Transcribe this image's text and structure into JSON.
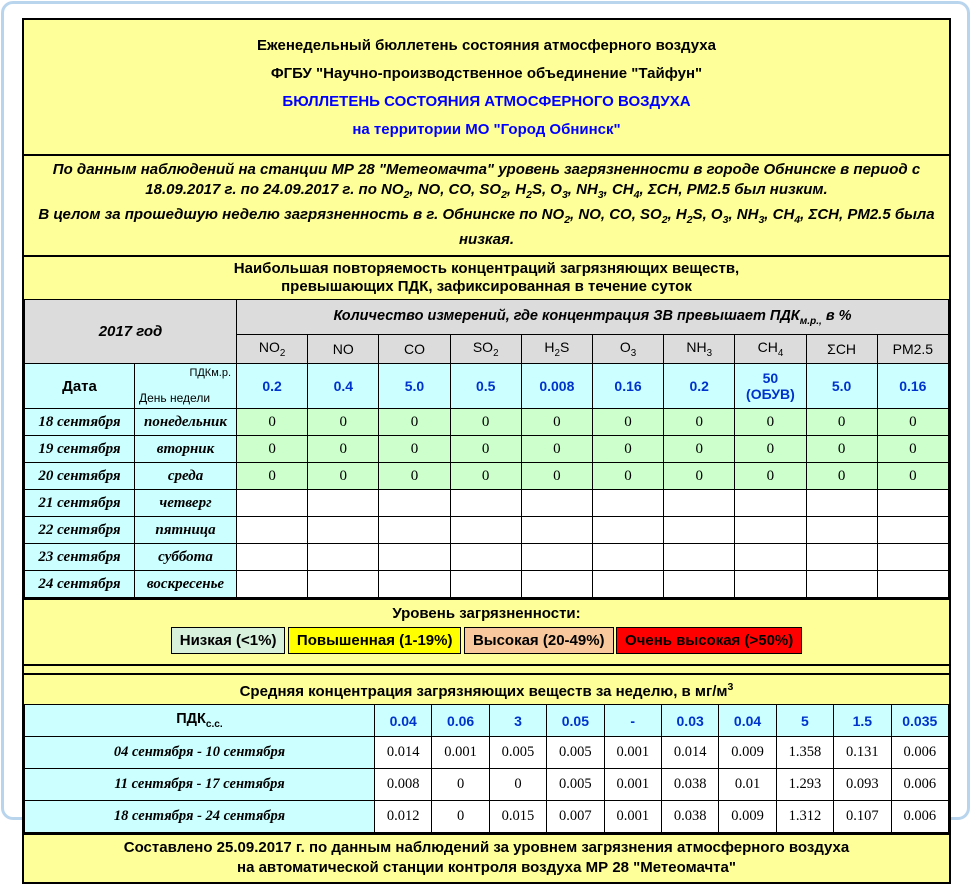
{
  "palette": {
    "paper_bg": "#ffff99",
    "header_gray": "#dcdcdc",
    "label_cyan": "#ccffff",
    "zero_green": "#ccffcc",
    "title_blue": "#0000ff",
    "value_blue": "#0033cc",
    "frame_blue": "#b9d5ee"
  },
  "header": {
    "line1": "Еженедельный бюллетень состояния атмосферного воздуха",
    "line2": "ФГБУ \"Научно-производственное объединение \"Тайфун\"",
    "line3": "БЮЛЛЕТЕНЬ СОСТОЯНИЯ АТМОСФЕРНОГО ВОЗДУХА",
    "line4": "на территории МО \"Город Обнинск\""
  },
  "summary": {
    "sentence1": [
      {
        "t": "По данным наблюдений на станции МР 28 \"Метеомачта\" уровень загрязненности в городе Обнинске в период с 18.09.2017 г. по 24.09.2017 г. по NO"
      },
      {
        "s": "2"
      },
      {
        "t": ", NO, CO, SO"
      },
      {
        "s": "2"
      },
      {
        "t": ", H"
      },
      {
        "s": "2"
      },
      {
        "t": "S, O"
      },
      {
        "s": "3"
      },
      {
        "t": ", NH"
      },
      {
        "s": "3"
      },
      {
        "t": ", CH"
      },
      {
        "s": "4"
      },
      {
        "t": ", ΣCH, PM2.5 был низким."
      }
    ],
    "sentence2": [
      {
        "t": "В целом за прошедшую неделю загрязненность в г. Обнинске по NO"
      },
      {
        "s": "2"
      },
      {
        "t": ", NO, CO, SO"
      },
      {
        "s": "2"
      },
      {
        "t": ", H"
      },
      {
        "s": "2"
      },
      {
        "t": "S, O"
      },
      {
        "s": "3"
      },
      {
        "t": ", NH"
      },
      {
        "s": "3"
      },
      {
        "t": ", CH"
      },
      {
        "s": "4"
      },
      {
        "t": ", ΣCH, PM2.5 была низкая."
      }
    ]
  },
  "table1": {
    "band_line1": "Наибольшая повторяемость концентраций загрязняющих веществ,",
    "band_line2": "превышающих ПДК, зафиксированная в течение суток",
    "year_label": "2017 год",
    "measure_header": [
      {
        "t": "Количество измерений, где концентрация ЗВ превышает ПДК"
      },
      {
        "s": "м.р.,"
      },
      {
        "t": " в %"
      }
    ],
    "columns": [
      {
        "segs": [
          {
            "t": "NO"
          },
          {
            "s": "2"
          }
        ]
      },
      {
        "segs": [
          {
            "t": "NO"
          }
        ]
      },
      {
        "segs": [
          {
            "t": "CO"
          }
        ]
      },
      {
        "segs": [
          {
            "t": "SO"
          },
          {
            "s": "2"
          }
        ]
      },
      {
        "segs": [
          {
            "t": "H"
          },
          {
            "s": "2"
          },
          {
            "t": "S"
          }
        ]
      },
      {
        "segs": [
          {
            "t": "O"
          },
          {
            "s": "3"
          }
        ]
      },
      {
        "segs": [
          {
            "t": "NH"
          },
          {
            "s": "3"
          }
        ]
      },
      {
        "segs": [
          {
            "t": "CH"
          },
          {
            "s": "4"
          }
        ]
      },
      {
        "segs": [
          {
            "t": "ΣCH"
          }
        ]
      },
      {
        "segs": [
          {
            "t": "PM2.5"
          }
        ]
      }
    ],
    "date_label": "Дата",
    "diag_top": "ПДКм.р.",
    "diag_bottom": "День недели",
    "pdk_values": [
      "0.2",
      "0.4",
      "5.0",
      "0.5",
      "0.008",
      "0.16",
      "0.2",
      "50\n(ОБУВ)",
      "5.0",
      "0.16"
    ],
    "day_rows": [
      {
        "date": "18 сентября",
        "day": "понедельник",
        "status": "low",
        "values": [
          "0",
          "0",
          "0",
          "0",
          "0",
          "0",
          "0",
          "0",
          "0",
          "0"
        ]
      },
      {
        "date": "19 сентября",
        "day": "вторник",
        "status": "low",
        "values": [
          "0",
          "0",
          "0",
          "0",
          "0",
          "0",
          "0",
          "0",
          "0",
          "0"
        ]
      },
      {
        "date": "20 сентября",
        "day": "среда",
        "status": "low",
        "values": [
          "0",
          "0",
          "0",
          "0",
          "0",
          "0",
          "0",
          "0",
          "0",
          "0"
        ]
      },
      {
        "date": "21 сентября",
        "day": "четверг",
        "status": "empty",
        "values": [
          "",
          "",
          "",
          "",
          "",
          "",
          "",
          "",
          "",
          ""
        ]
      },
      {
        "date": "22 сентября",
        "day": "пятница",
        "status": "empty",
        "values": [
          "",
          "",
          "",
          "",
          "",
          "",
          "",
          "",
          "",
          ""
        ]
      },
      {
        "date": "23 сентября",
        "day": "суббота",
        "status": "empty",
        "values": [
          "",
          "",
          "",
          "",
          "",
          "",
          "",
          "",
          "",
          ""
        ]
      },
      {
        "date": "24 сентября",
        "day": "воскресенье",
        "status": "empty",
        "values": [
          "",
          "",
          "",
          "",
          "",
          "",
          "",
          "",
          "",
          ""
        ]
      }
    ]
  },
  "legend": {
    "title": "Уровень загрязненности:",
    "items": [
      {
        "label": "Низкая (<1%)",
        "color": "#d8f1dd"
      },
      {
        "label": "Повышенная (1-19%)",
        "color": "#ffff00"
      },
      {
        "label": "Высокая (20-49%)",
        "color": "#f9c89c"
      },
      {
        "label": "Очень высокая (>50%)",
        "color": "#ff0000"
      }
    ]
  },
  "table2": {
    "band": [
      {
        "t": "Средняя концентрация загрязняющих веществ за неделю, в мг/м"
      },
      {
        "p": "3"
      }
    ],
    "pdk_label": [
      {
        "t": "ПДК"
      },
      {
        "s": "с.с."
      }
    ],
    "pdk_values": [
      "0.04",
      "0.06",
      "3",
      "0.05",
      "-",
      "0.03",
      "0.04",
      "5",
      "1.5",
      "0.035"
    ],
    "rows": [
      {
        "label": "04 сентября - 10 сентября",
        "values": [
          "0.014",
          "0.001",
          "0.005",
          "0.005",
          "0.001",
          "0.014",
          "0.009",
          "1.358",
          "0.131",
          "0.006"
        ]
      },
      {
        "label": "11 сентября - 17 сентября",
        "values": [
          "0.008",
          "0",
          "0",
          "0.005",
          "0.001",
          "0.038",
          "0.01",
          "1.293",
          "0.093",
          "0.006"
        ]
      },
      {
        "label": "18 сентября - 24 сентября",
        "values": [
          "0.012",
          "0",
          "0.015",
          "0.007",
          "0.001",
          "0.038",
          "0.009",
          "1.312",
          "0.107",
          "0.006"
        ]
      }
    ]
  },
  "footer": {
    "line1": "Составлено 25.09.2017 г. по данным наблюдений за уровнем загрязнения атмосферного воздуха",
    "line2": "на автоматической станции контроля воздуха МР 28 \"Метеомачта\""
  }
}
